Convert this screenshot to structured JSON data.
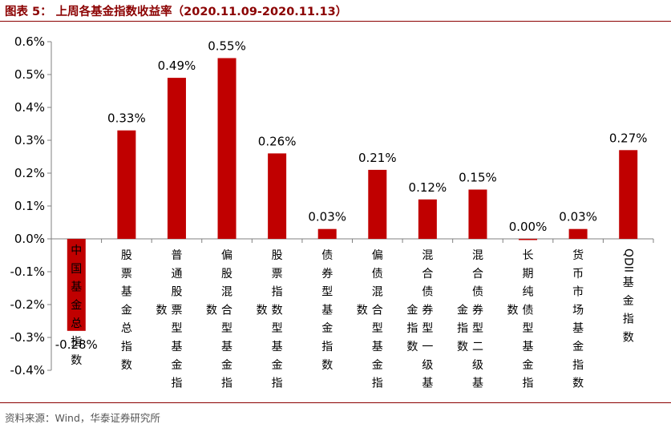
{
  "figure": {
    "title": "图表 5：  上周各基金指数收益率（2020.11.09-2020.11.13）",
    "source": "资料来源：Wind，华泰证券研究所"
  },
  "colors": {
    "bar": "#c00000",
    "accent": "#8b0000",
    "axis": "#808080"
  },
  "chart_data": {
    "type": "bar",
    "title": "",
    "xlabel": "",
    "ylabel": "",
    "categories": [
      "中国基金总指数",
      "股票基金总指数",
      "普通股票型基金指数",
      "偏股混合型基金指数",
      "股票指数型基金指数",
      "债券型基金指数",
      "偏债混合型基金指数",
      "混合债券型一级基金指数",
      "混合债券型二级基金指数",
      "长期纯债型基金指数",
      "货币市场基金指数",
      "QDII基金指数"
    ],
    "values": [
      -0.28,
      0.33,
      0.49,
      0.55,
      0.26,
      0.03,
      0.21,
      0.12,
      0.15,
      0.0,
      0.03,
      0.27
    ],
    "value_labels": [
      "-0.28%",
      "0.33%",
      "0.49%",
      "0.55%",
      "0.26%",
      "0.03%",
      "0.21%",
      "0.12%",
      "0.15%",
      "0.00%",
      "0.03%",
      "0.27%"
    ],
    "yticks": [
      0.6,
      0.5,
      0.4,
      0.3,
      0.2,
      0.1,
      0.0,
      -0.1,
      -0.2,
      -0.3,
      -0.4
    ],
    "ytick_labels": [
      "0.6%",
      "0.5%",
      "0.4%",
      "0.3%",
      "0.2%",
      "0.1%",
      "0.0%",
      "-0.1%",
      "-0.2%",
      "-0.3%",
      "-0.4%"
    ],
    "ylim": [
      -0.4,
      0.6
    ],
    "units": "%",
    "grid": false,
    "legend": "none"
  }
}
